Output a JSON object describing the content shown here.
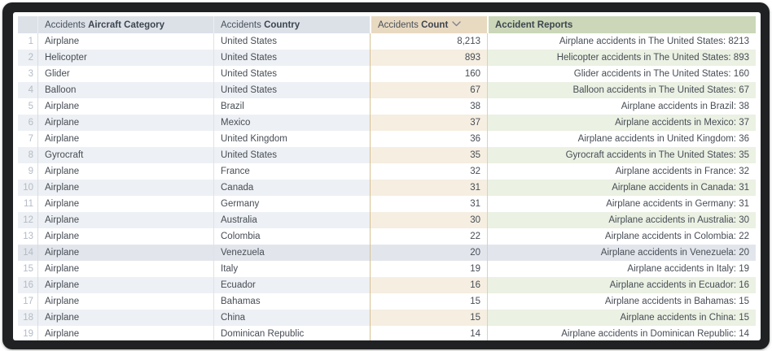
{
  "table": {
    "columns": [
      {
        "prefix": "Accidents",
        "label": "Aircraft Category"
      },
      {
        "prefix": "Accidents",
        "label": "Country"
      },
      {
        "prefix": "Accidents",
        "label": "Count",
        "sort_indicator": "descending"
      },
      {
        "prefix": "",
        "label": "Accident Reports"
      }
    ],
    "selected_row": 14,
    "rows": [
      {
        "n": 1,
        "category": "Airplane",
        "country": "United States",
        "count": "8,213",
        "report": "Airplane accidents in The United States: 8213"
      },
      {
        "n": 2,
        "category": "Helicopter",
        "country": "United States",
        "count": "893",
        "report": "Helicopter accidents in The United States: 893"
      },
      {
        "n": 3,
        "category": "Glider",
        "country": "United States",
        "count": "160",
        "report": "Glider accidents in The United States: 160"
      },
      {
        "n": 4,
        "category": "Balloon",
        "country": "United States",
        "count": "67",
        "report": "Balloon accidents in The United States: 67"
      },
      {
        "n": 5,
        "category": "Airplane",
        "country": "Brazil",
        "count": "38",
        "report": "Airplane accidents in Brazil: 38"
      },
      {
        "n": 6,
        "category": "Airplane",
        "country": "Mexico",
        "count": "37",
        "report": "Airplane accidents in Mexico: 37"
      },
      {
        "n": 7,
        "category": "Airplane",
        "country": "United Kingdom",
        "count": "36",
        "report": "Airplane accidents in United Kingdom: 36"
      },
      {
        "n": 8,
        "category": "Gyrocraft",
        "country": "United States",
        "count": "35",
        "report": "Gyrocraft accidents in The United States: 35"
      },
      {
        "n": 9,
        "category": "Airplane",
        "country": "France",
        "count": "32",
        "report": "Airplane accidents in France: 32"
      },
      {
        "n": 10,
        "category": "Airplane",
        "country": "Canada",
        "count": "31",
        "report": "Airplane accidents in Canada: 31"
      },
      {
        "n": 11,
        "category": "Airplane",
        "country": "Germany",
        "count": "31",
        "report": "Airplane accidents in Germany: 31"
      },
      {
        "n": 12,
        "category": "Airplane",
        "country": "Australia",
        "count": "30",
        "report": "Airplane accidents in Australia: 30"
      },
      {
        "n": 13,
        "category": "Airplane",
        "country": "Colombia",
        "count": "22",
        "report": "Airplane accidents in Colombia: 22"
      },
      {
        "n": 14,
        "category": "Airplane",
        "country": "Venezuela",
        "count": "20",
        "report": "Airplane accidents in Venezuela: 20"
      },
      {
        "n": 15,
        "category": "Airplane",
        "country": "Italy",
        "count": "19",
        "report": "Airplane accidents in Italy: 19"
      },
      {
        "n": 16,
        "category": "Airplane",
        "country": "Ecuador",
        "count": "16",
        "report": "Airplane accidents in Ecuador: 16"
      },
      {
        "n": 17,
        "category": "Airplane",
        "country": "Bahamas",
        "count": "15",
        "report": "Airplane accidents in Bahamas: 15"
      },
      {
        "n": 18,
        "category": "Airplane",
        "country": "China",
        "count": "15",
        "report": "Airplane accidents in China: 15"
      },
      {
        "n": 19,
        "category": "Airplane",
        "country": "Dominican Republic",
        "count": "14",
        "report": "Airplane accidents in Dominican Republic: 14"
      }
    ]
  },
  "colors": {
    "frame": "#1f2123",
    "header_default": "#dce1e8",
    "header_count": "#e8d9c1",
    "header_reports": "#cbd7b8",
    "row_even_default": "#edf0f4",
    "row_even_count": "#f5eee1",
    "row_even_reports": "#ebf1e3",
    "row_selected": "#e2e6ec",
    "text": "#474d55",
    "row_number_text": "#b3bbc6"
  }
}
